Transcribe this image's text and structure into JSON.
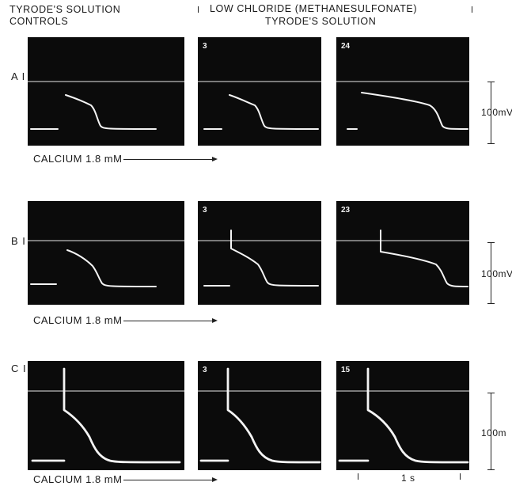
{
  "header": {
    "left_line1": "TYRODE'S SOLUTION",
    "left_line2": "CONTROLS",
    "right_line1": "LOW CHLORIDE (METHANESULFONATE)",
    "right_line2": "TYRODE'S SOLUTION"
  },
  "rows": [
    {
      "label": "A I",
      "calcium": "CALCIUM 1.8 mM",
      "scale": "100mV",
      "panel_numbers": [
        "3",
        "24"
      ]
    },
    {
      "label": "B I",
      "calcium": "CALCIUM 1.8 mM",
      "scale": "100mV",
      "panel_numbers": [
        "3",
        "23"
      ]
    },
    {
      "label": "C I",
      "calcium": "CALCIUM 1.8 mM",
      "scale": "100m",
      "panel_numbers": [
        "3",
        "15"
      ]
    }
  ],
  "time_scale": "1 s"
}
